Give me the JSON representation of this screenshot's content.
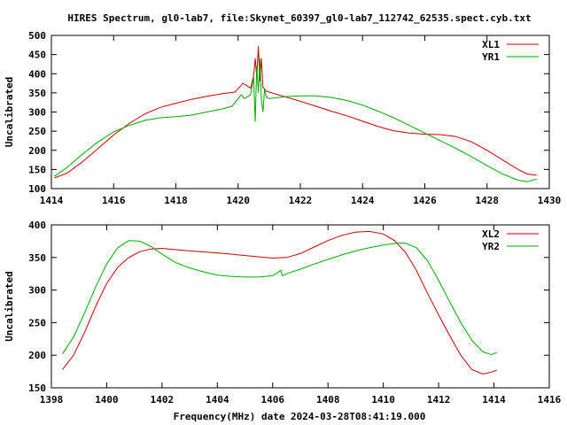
{
  "title": "HIRES Spectrum, gl0-lab7, file:Skynet_60397_gl0-lab7_112742_62535.spect.cyb.txt",
  "footer_label": "Frequency(MHz) date 2024-03-28T08:41:19.000",
  "colors": {
    "red": "#cc0000",
    "green": "#00aa00",
    "axis": "#000000"
  },
  "chart_data": [
    {
      "type": "line",
      "ylabel": "Uncalibrated",
      "xlim": [
        1414,
        1430
      ],
      "ylim": [
        100,
        500
      ],
      "xticks": [
        1414,
        1416,
        1418,
        1420,
        1422,
        1424,
        1426,
        1428,
        1430
      ],
      "yticks": [
        100,
        150,
        200,
        250,
        300,
        350,
        400,
        450,
        500
      ],
      "legend": "top-right",
      "series": [
        {
          "name": "XL1",
          "color": "#cc0000",
          "points": [
            [
              1414.1,
              128
            ],
            [
              1414.5,
              140
            ],
            [
              1415,
              170
            ],
            [
              1415.5,
              205
            ],
            [
              1416,
              240
            ],
            [
              1416.5,
              270
            ],
            [
              1417,
              295
            ],
            [
              1417.5,
              312
            ],
            [
              1418,
              323
            ],
            [
              1418.5,
              333
            ],
            [
              1419,
              341
            ],
            [
              1419.5,
              348
            ],
            [
              1419.9,
              352
            ],
            [
              1420.05,
              365
            ],
            [
              1420.15,
              375
            ],
            [
              1420.3,
              368
            ],
            [
              1420.4,
              362
            ],
            [
              1420.5,
              395
            ],
            [
              1420.55,
              440
            ],
            [
              1420.6,
              390
            ],
            [
              1420.65,
              472
            ],
            [
              1420.7,
              380
            ],
            [
              1420.75,
              440
            ],
            [
              1420.8,
              365
            ],
            [
              1420.9,
              355
            ],
            [
              1421,
              352
            ],
            [
              1421.5,
              340
            ],
            [
              1422,
              328
            ],
            [
              1422.5,
              315
            ],
            [
              1423,
              302
            ],
            [
              1423.5,
              290
            ],
            [
              1424,
              276
            ],
            [
              1424.5,
              262
            ],
            [
              1425,
              251
            ],
            [
              1425.5,
              245
            ],
            [
              1426,
              242
            ],
            [
              1426.5,
              241
            ],
            [
              1427,
              236
            ],
            [
              1427.5,
              222
            ],
            [
              1428,
              200
            ],
            [
              1428.5,
              175
            ],
            [
              1429,
              150
            ],
            [
              1429.3,
              138
            ],
            [
              1429.6,
              135
            ]
          ]
        },
        {
          "name": "YR1",
          "color": "#00aa00",
          "points": [
            [
              1414.1,
              132
            ],
            [
              1414.5,
              155
            ],
            [
              1415,
              190
            ],
            [
              1415.5,
              222
            ],
            [
              1416,
              248
            ],
            [
              1416.5,
              265
            ],
            [
              1417,
              278
            ],
            [
              1417.5,
              285
            ],
            [
              1418,
              288
            ],
            [
              1418.5,
              292
            ],
            [
              1419,
              300
            ],
            [
              1419.5,
              308
            ],
            [
              1419.8,
              315
            ],
            [
              1420,
              335
            ],
            [
              1420.1,
              345
            ],
            [
              1420.2,
              335
            ],
            [
              1420.4,
              345
            ],
            [
              1420.5,
              390
            ],
            [
              1420.55,
              275
            ],
            [
              1420.6,
              420
            ],
            [
              1420.65,
              350
            ],
            [
              1420.7,
              440
            ],
            [
              1420.75,
              330
            ],
            [
              1420.8,
              300
            ],
            [
              1420.85,
              360
            ],
            [
              1420.9,
              340
            ],
            [
              1421,
              335
            ],
            [
              1421.5,
              340
            ],
            [
              1422,
              342
            ],
            [
              1422.5,
              342
            ],
            [
              1423,
              338
            ],
            [
              1423.5,
              330
            ],
            [
              1424,
              318
            ],
            [
              1424.5,
              302
            ],
            [
              1425,
              285
            ],
            [
              1425.5,
              265
            ],
            [
              1426,
              245
            ],
            [
              1426.5,
              225
            ],
            [
              1427,
              205
            ],
            [
              1427.5,
              183
            ],
            [
              1428,
              160
            ],
            [
              1428.5,
              138
            ],
            [
              1429,
              122
            ],
            [
              1429.3,
              118
            ],
            [
              1429.6,
              125
            ]
          ]
        }
      ]
    },
    {
      "type": "line",
      "ylabel": "Uncalibrated",
      "xlim": [
        1398,
        1416
      ],
      "ylim": [
        150,
        400
      ],
      "xticks": [
        1398,
        1400,
        1402,
        1404,
        1406,
        1408,
        1410,
        1412,
        1414,
        1416
      ],
      "yticks": [
        150,
        200,
        250,
        300,
        350,
        400
      ],
      "legend": "top-right",
      "series": [
        {
          "name": "XL2",
          "color": "#cc0000",
          "points": [
            [
              1398.4,
              178
            ],
            [
              1398.8,
              200
            ],
            [
              1399.2,
              235
            ],
            [
              1399.6,
              275
            ],
            [
              1400,
              310
            ],
            [
              1400.4,
              335
            ],
            [
              1400.8,
              350
            ],
            [
              1401.2,
              359
            ],
            [
              1401.6,
              363
            ],
            [
              1402,
              364
            ],
            [
              1402.5,
              362
            ],
            [
              1403,
              360
            ],
            [
              1404,
              357
            ],
            [
              1405,
              353
            ],
            [
              1406,
              349
            ],
            [
              1406.5,
              350
            ],
            [
              1407,
              356
            ],
            [
              1407.5,
              366
            ],
            [
              1408,
              376
            ],
            [
              1408.5,
              384
            ],
            [
              1409,
              389
            ],
            [
              1409.5,
              390
            ],
            [
              1410,
              386
            ],
            [
              1410.4,
              376
            ],
            [
              1410.8,
              358
            ],
            [
              1411.2,
              330
            ],
            [
              1411.6,
              295
            ],
            [
              1412,
              262
            ],
            [
              1412.4,
              230
            ],
            [
              1412.8,
              200
            ],
            [
              1413.2,
              178
            ],
            [
              1413.6,
              171
            ],
            [
              1413.9,
              174
            ],
            [
              1414.1,
              177
            ]
          ]
        },
        {
          "name": "YR2",
          "color": "#00aa00",
          "points": [
            [
              1398.4,
              202
            ],
            [
              1398.8,
              228
            ],
            [
              1399.2,
              265
            ],
            [
              1399.6,
              305
            ],
            [
              1400,
              340
            ],
            [
              1400.4,
              365
            ],
            [
              1400.8,
              376
            ],
            [
              1401.2,
              375
            ],
            [
              1401.6,
              367
            ],
            [
              1402,
              355
            ],
            [
              1402.5,
              342
            ],
            [
              1403,
              334
            ],
            [
              1403.5,
              328
            ],
            [
              1404,
              323
            ],
            [
              1404.5,
              321
            ],
            [
              1405,
              320
            ],
            [
              1405.5,
              320
            ],
            [
              1406,
              322
            ],
            [
              1406.3,
              330
            ],
            [
              1406.35,
              322
            ],
            [
              1406.5,
              325
            ],
            [
              1407,
              332
            ],
            [
              1407.5,
              340
            ],
            [
              1408,
              347
            ],
            [
              1408.5,
              354
            ],
            [
              1409,
              360
            ],
            [
              1409.5,
              365
            ],
            [
              1410,
              369
            ],
            [
              1410.5,
              372
            ],
            [
              1410.8,
              372
            ],
            [
              1411.2,
              365
            ],
            [
              1411.6,
              345
            ],
            [
              1412,
              315
            ],
            [
              1412.4,
              282
            ],
            [
              1412.8,
              250
            ],
            [
              1413.2,
              223
            ],
            [
              1413.6,
              205
            ],
            [
              1413.9,
              201
            ],
            [
              1414.1,
              204
            ]
          ]
        }
      ]
    }
  ]
}
